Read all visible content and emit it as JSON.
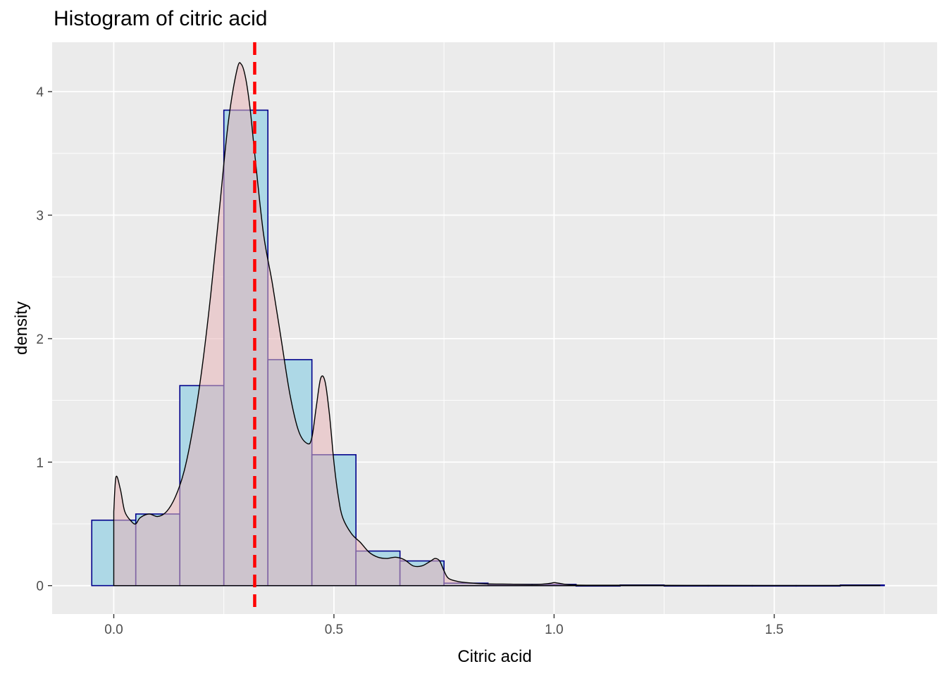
{
  "chart_data": {
    "type": "bar",
    "title": "Histogram of citric acid",
    "xlabel": "Citric acid",
    "ylabel": "density",
    "xlim": [
      -0.14,
      1.87
    ],
    "ylim": [
      -0.23,
      4.4
    ],
    "x_ticks": [
      0.0,
      0.5,
      1.0,
      1.5
    ],
    "x_tick_labels": [
      "0.0",
      "0.5",
      "1.0",
      "1.5"
    ],
    "y_ticks": [
      0,
      1,
      2,
      3,
      4
    ],
    "y_tick_labels": [
      "0",
      "1",
      "2",
      "3",
      "4"
    ],
    "grid": true,
    "histogram": {
      "bin_width": 0.1,
      "bins": [
        {
          "start": -0.05,
          "end": 0.05,
          "density": 0.53
        },
        {
          "start": 0.05,
          "end": 0.15,
          "density": 0.58
        },
        {
          "start": 0.15,
          "end": 0.25,
          "density": 1.62
        },
        {
          "start": 0.25,
          "end": 0.35,
          "density": 3.85
        },
        {
          "start": 0.35,
          "end": 0.45,
          "density": 1.83
        },
        {
          "start": 0.45,
          "end": 0.55,
          "density": 1.06
        },
        {
          "start": 0.55,
          "end": 0.65,
          "density": 0.28
        },
        {
          "start": 0.65,
          "end": 0.75,
          "density": 0.2
        },
        {
          "start": 0.75,
          "end": 0.85,
          "density": 0.02
        },
        {
          "start": 0.85,
          "end": 0.95,
          "density": 0.01
        },
        {
          "start": 0.95,
          "end": 1.05,
          "density": 0.01
        },
        {
          "start": 1.05,
          "end": 1.15,
          "density": 0.0
        },
        {
          "start": 1.15,
          "end": 1.25,
          "density": 0.005
        },
        {
          "start": 1.25,
          "end": 1.35,
          "density": 0.0
        },
        {
          "start": 1.35,
          "end": 1.45,
          "density": 0.0
        },
        {
          "start": 1.45,
          "end": 1.55,
          "density": 0.0
        },
        {
          "start": 1.55,
          "end": 1.65,
          "density": 0.0
        },
        {
          "start": 1.65,
          "end": 1.75,
          "density": 0.005
        }
      ]
    },
    "density_curve": {
      "x": [
        0.0,
        0.005,
        0.015,
        0.025,
        0.04,
        0.05,
        0.06,
        0.08,
        0.1,
        0.12,
        0.14,
        0.16,
        0.18,
        0.2,
        0.22,
        0.24,
        0.26,
        0.28,
        0.29,
        0.3,
        0.31,
        0.32,
        0.34,
        0.36,
        0.38,
        0.4,
        0.42,
        0.44,
        0.45,
        0.46,
        0.47,
        0.48,
        0.49,
        0.5,
        0.51,
        0.52,
        0.54,
        0.56,
        0.58,
        0.6,
        0.62,
        0.64,
        0.66,
        0.68,
        0.7,
        0.72,
        0.73,
        0.74,
        0.75,
        0.76,
        0.78,
        0.8,
        0.84,
        0.9,
        0.96,
        0.99,
        1.0,
        1.01,
        1.05,
        1.2,
        1.3,
        1.5,
        1.74
      ],
      "y": [
        0.6,
        0.88,
        0.78,
        0.6,
        0.52,
        0.5,
        0.55,
        0.58,
        0.56,
        0.6,
        0.72,
        0.93,
        1.28,
        1.75,
        2.35,
        3.05,
        3.75,
        4.18,
        4.22,
        4.1,
        3.85,
        3.5,
        2.85,
        2.45,
        2.0,
        1.55,
        1.25,
        1.15,
        1.2,
        1.45,
        1.68,
        1.65,
        1.38,
        1.0,
        0.72,
        0.55,
        0.42,
        0.35,
        0.27,
        0.23,
        0.22,
        0.23,
        0.21,
        0.16,
        0.16,
        0.2,
        0.22,
        0.2,
        0.12,
        0.06,
        0.035,
        0.025,
        0.015,
        0.012,
        0.01,
        0.018,
        0.025,
        0.02,
        0.005,
        0.003,
        0.002,
        0.001,
        0.002
      ]
    },
    "mean_line_x": 0.32,
    "colors": {
      "panel_background": "#ebebeb",
      "gridline": "#ffffff",
      "bar_fill": "#add8e6",
      "bar_outline": "#00008b",
      "density_fill": "#e8b4b8",
      "density_line": "#000000",
      "mean_line": "#ff0000"
    }
  }
}
